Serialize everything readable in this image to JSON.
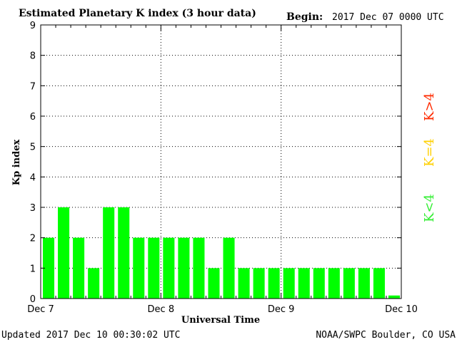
{
  "header": {
    "title": "Estimated Planetary K index (3 hour data)",
    "begin_label": "Begin:",
    "begin_value": "2017 Dec 07 0000 UTC"
  },
  "footer": {
    "updated": "Updated 2017 Dec 10 00:30:02 UTC",
    "source": "NOAA/SWPC Boulder, CO USA"
  },
  "colors": {
    "bar": "#00ff00",
    "legend_high": "#ff2a00",
    "legend_mid": "#ffd000",
    "legend_low": "#33ee33"
  },
  "legend": {
    "high": "K>4",
    "mid": "K=4",
    "low": "K<4"
  },
  "chart_data": {
    "type": "bar",
    "title": "Estimated Planetary K index (3 hour data)",
    "xlabel": "Universal Time",
    "ylabel": "Kp index",
    "ylim": [
      0,
      9
    ],
    "yticks": [
      0,
      1,
      2,
      3,
      4,
      5,
      6,
      7,
      8,
      9
    ],
    "xticks": [
      "Dec 7",
      "Dec 8",
      "Dec 9",
      "Dec 10"
    ],
    "grid": true,
    "interval_hours": 3,
    "values": [
      2,
      3,
      2,
      1,
      3,
      3,
      2,
      2,
      2,
      2,
      2,
      1,
      2,
      1,
      1,
      1,
      1,
      1,
      1,
      1,
      1,
      1,
      1,
      0.1
    ]
  }
}
